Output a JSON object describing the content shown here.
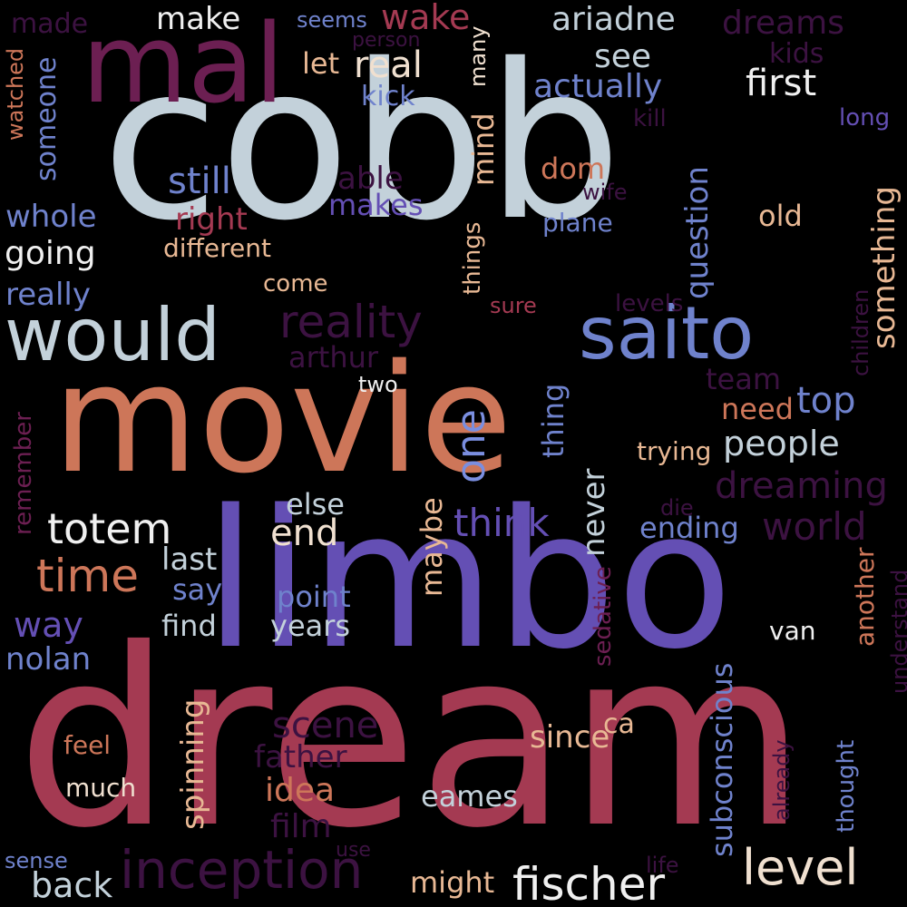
{
  "background": "#000000",
  "palette": {
    "pale_blue": "#c3d1da",
    "plum": "#6c1f52",
    "dark_plum": "#3c1241",
    "salmon": "#cd7659",
    "violet": "#644fb4",
    "periwinkle": "#6f82cc",
    "crimson": "#a43a52",
    "cream": "#f0e0d0",
    "tan": "#e8b894"
  },
  "words": [
    {
      "text": "cobb",
      "color": "#c3d1da",
      "emphasis": "largest"
    },
    {
      "text": "dream",
      "color": "#a43a52",
      "emphasis": "largest"
    },
    {
      "text": "limbo",
      "color": "#644fb4",
      "emphasis": "large"
    },
    {
      "text": "movie",
      "color": "#cd7659",
      "emphasis": "large"
    },
    {
      "text": "mal",
      "color": "#6c1f52",
      "emphasis": "large"
    },
    {
      "text": "would",
      "color": "#c3d1da"
    },
    {
      "text": "saito",
      "color": "#6f82cc"
    },
    {
      "text": "reality",
      "color": "#3c1241"
    },
    {
      "text": "inception",
      "color": "#3c1241"
    },
    {
      "text": "fischer",
      "color": "#f0f0f0"
    },
    {
      "text": "level",
      "color": "#f0e0d0"
    },
    {
      "text": "totem",
      "color": "#f0f0f0"
    },
    {
      "text": "time",
      "color": "#cd7659"
    },
    {
      "text": "one",
      "color": "#7a8ee0"
    },
    {
      "text": "real",
      "color": "#f0e0d0"
    },
    {
      "text": "wake",
      "color": "#a43a52"
    },
    {
      "text": "ariadne",
      "color": "#c3d1da"
    },
    {
      "text": "dreams",
      "color": "#3c1241"
    },
    {
      "text": "first",
      "color": "#f0f0f0"
    },
    {
      "text": "see",
      "color": "#c3d1da"
    },
    {
      "text": "actually",
      "color": "#6f82cc"
    },
    {
      "text": "make",
      "color": "#f0f0f0"
    },
    {
      "text": "made",
      "color": "#3c1241"
    },
    {
      "text": "seems",
      "color": "#6f82cc"
    },
    {
      "text": "person",
      "color": "#3c1241"
    },
    {
      "text": "let",
      "color": "#e8b894"
    },
    {
      "text": "many",
      "color": "#f0e0d0"
    },
    {
      "text": "kick",
      "color": "#6f82cc"
    },
    {
      "text": "kids",
      "color": "#3c1241"
    },
    {
      "text": "kill",
      "color": "#3c1241"
    },
    {
      "text": "long",
      "color": "#644fb4"
    },
    {
      "text": "watched",
      "color": "#cd7659"
    },
    {
      "text": "someone",
      "color": "#6f82cc"
    },
    {
      "text": "mind",
      "color": "#e8b894"
    },
    {
      "text": "dom",
      "color": "#cd7659"
    },
    {
      "text": "wife",
      "color": "#3c1241"
    },
    {
      "text": "still",
      "color": "#6f82cc"
    },
    {
      "text": "able",
      "color": "#3c1241"
    },
    {
      "text": "makes",
      "color": "#644fb4"
    },
    {
      "text": "question",
      "color": "#6f82cc"
    },
    {
      "text": "something",
      "color": "#e8b894"
    },
    {
      "text": "whole",
      "color": "#6f82cc"
    },
    {
      "text": "right",
      "color": "#a43a52"
    },
    {
      "text": "plane",
      "color": "#6f82cc"
    },
    {
      "text": "old",
      "color": "#e8b894"
    },
    {
      "text": "going",
      "color": "#f0f0f0"
    },
    {
      "text": "different",
      "color": "#e8b894"
    },
    {
      "text": "things",
      "color": "#e8b894"
    },
    {
      "text": "children",
      "color": "#3c1241"
    },
    {
      "text": "really",
      "color": "#6f82cc"
    },
    {
      "text": "come",
      "color": "#e8b894"
    },
    {
      "text": "sure",
      "color": "#a43a52"
    },
    {
      "text": "levels",
      "color": "#3c1241"
    },
    {
      "text": "arthur",
      "color": "#3c1241"
    },
    {
      "text": "team",
      "color": "#3c1241"
    },
    {
      "text": "two",
      "color": "#f0f0f0"
    },
    {
      "text": "top",
      "color": "#6f82cc"
    },
    {
      "text": "need",
      "color": "#cd7659"
    },
    {
      "text": "thing",
      "color": "#6f82cc"
    },
    {
      "text": "people",
      "color": "#c3d1da"
    },
    {
      "text": "trying",
      "color": "#e8b894"
    },
    {
      "text": "remember",
      "color": "#6c1f52"
    },
    {
      "text": "dreaming",
      "color": "#3c1241"
    },
    {
      "text": "else",
      "color": "#c3d1da"
    },
    {
      "text": "end",
      "color": "#f0e0d0"
    },
    {
      "text": "think",
      "color": "#644fb4"
    },
    {
      "text": "never",
      "color": "#c3d1da"
    },
    {
      "text": "die",
      "color": "#3c1241"
    },
    {
      "text": "ending",
      "color": "#6f82cc"
    },
    {
      "text": "world",
      "color": "#3c1241"
    },
    {
      "text": "last",
      "color": "#c3d1da"
    },
    {
      "text": "say",
      "color": "#6f82cc"
    },
    {
      "text": "maybe",
      "color": "#e8b894"
    },
    {
      "text": "another",
      "color": "#cd7659"
    },
    {
      "text": "way",
      "color": "#644fb4"
    },
    {
      "text": "point",
      "color": "#6f82cc"
    },
    {
      "text": "find",
      "color": "#c3d1da"
    },
    {
      "text": "years",
      "color": "#c3d1da"
    },
    {
      "text": "sedative",
      "color": "#6c1f52"
    },
    {
      "text": "understand",
      "color": "#3c1241"
    },
    {
      "text": "nolan",
      "color": "#6f82cc"
    },
    {
      "text": "van",
      "color": "#f0f0f0"
    },
    {
      "text": "spinning",
      "color": "#e8b894"
    },
    {
      "text": "subconscious",
      "color": "#6f82cc"
    },
    {
      "text": "scene",
      "color": "#3c1241"
    },
    {
      "text": "ca",
      "color": "#e8b894"
    },
    {
      "text": "since",
      "color": "#e8b894"
    },
    {
      "text": "feel",
      "color": "#cd7659"
    },
    {
      "text": "father",
      "color": "#3c1241"
    },
    {
      "text": "already",
      "color": "#3c1241"
    },
    {
      "text": "thought",
      "color": "#6f82cc"
    },
    {
      "text": "idea",
      "color": "#cd7659"
    },
    {
      "text": "much",
      "color": "#f0e0d0"
    },
    {
      "text": "eames",
      "color": "#c3d1da"
    },
    {
      "text": "film",
      "color": "#3c1241"
    },
    {
      "text": "sense",
      "color": "#6f82cc"
    },
    {
      "text": "use",
      "color": "#3c1241"
    },
    {
      "text": "back",
      "color": "#c3d1da"
    },
    {
      "text": "might",
      "color": "#e8b894"
    },
    {
      "text": "life",
      "color": "#3c1241"
    }
  ]
}
